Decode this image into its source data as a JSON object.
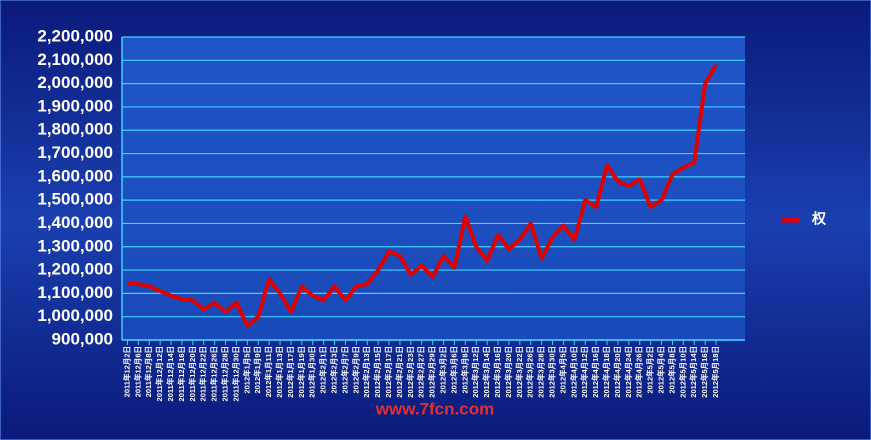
{
  "chart_data": {
    "type": "line",
    "categories": [
      "2011年12月2日",
      "2011年12月6日",
      "2011年12月8日",
      "2011年12月12日",
      "2011年12月14日",
      "2011年12月16日",
      "2011年12月20日",
      "2011年12月22日",
      "2011年12月26日",
      "2011年12月28日",
      "2011年12月30日",
      "2012年1月5日",
      "2012年1月9日",
      "2012年1月11日",
      "2012年1月13日",
      "2012年1月17日",
      "2012年1月19日",
      "2012年1月30日",
      "2012年2月1日",
      "2012年2月3日",
      "2012年2月7日",
      "2012年2月9日",
      "2012年2月13日",
      "2012年2月15日",
      "2012年2月17日",
      "2012年2月21日",
      "2012年2月23日",
      "2012年2月27日",
      "2012年2月29日",
      "2012年3月2日",
      "2012年3月6日",
      "2012年3月8日",
      "2012年3月12日",
      "2012年3月14日",
      "2012年3月16日",
      "2012年3月20日",
      "2012年3月22日",
      "2012年3月26日",
      "2012年3月28日",
      "2012年3月30日",
      "2012年4月5日",
      "2012年4月10日",
      "2012年4月12日",
      "2012年4月16日",
      "2012年4月18日",
      "2012年4月20日",
      "2012年4月24日",
      "2012年4月26日",
      "2012年5月2日",
      "2012年5月4日",
      "2012年5月8日",
      "2012年5月10日",
      "2012年5月14日",
      "2012年5月16日",
      "2012年5月18日"
    ],
    "series": [
      {
        "name": "权",
        "color": "#e00000",
        "values": [
          1140000,
          1140000,
          1130000,
          1110000,
          1090000,
          1075000,
          1070000,
          1030000,
          1060000,
          1020000,
          1060000,
          960000,
          1000000,
          1160000,
          1100000,
          1020000,
          1130000,
          1090000,
          1070000,
          1130000,
          1070000,
          1130000,
          1140000,
          1200000,
          1280000,
          1260000,
          1180000,
          1220000,
          1170000,
          1260000,
          1210000,
          1430000,
          1300000,
          1240000,
          1350000,
          1290000,
          1330000,
          1400000,
          1250000,
          1340000,
          1390000,
          1330000,
          1500000,
          1470000,
          1650000,
          1580000,
          1560000,
          1590000,
          1470000,
          1500000,
          1610000,
          1640000,
          1660000,
          2000000,
          2080000
        ]
      }
    ],
    "ylim": [
      900000,
      2200000
    ],
    "yticks": [
      {
        "value": 900000,
        "label": "900,000"
      },
      {
        "value": 1000000,
        "label": "1,000,000"
      },
      {
        "value": 1100000,
        "label": "1,100,000"
      },
      {
        "value": 1200000,
        "label": "1,200,000"
      },
      {
        "value": 1300000,
        "label": "1,300,000"
      },
      {
        "value": 1400000,
        "label": "1,400,000"
      },
      {
        "value": 1500000,
        "label": "1,500,000"
      },
      {
        "value": 1600000,
        "label": "1,600,000"
      },
      {
        "value": 1700000,
        "label": "1,700,000"
      },
      {
        "value": 1800000,
        "label": "1,800,000"
      },
      {
        "value": 1900000,
        "label": "1,900,000"
      },
      {
        "value": 2000000,
        "label": "2,000,000"
      },
      {
        "value": 2100000,
        "label": "2,100,000"
      },
      {
        "value": 2200000,
        "label": "2,200,000"
      }
    ],
    "grid": true,
    "legend": "right",
    "watermark": "www.7fcn.com"
  }
}
